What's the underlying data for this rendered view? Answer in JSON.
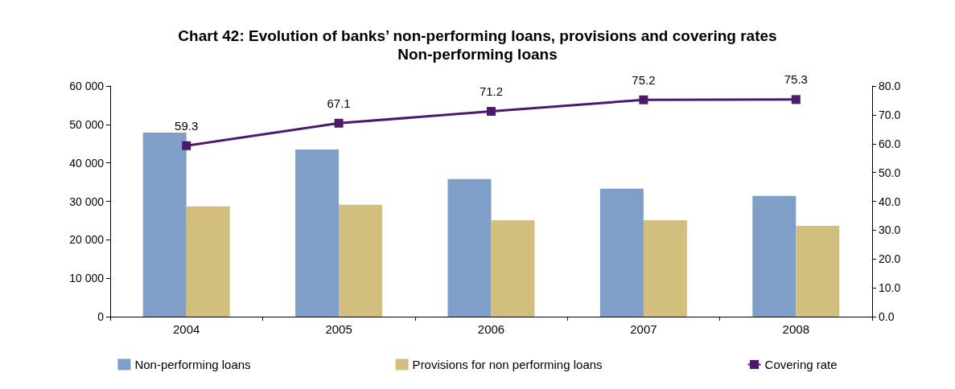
{
  "chart_data": {
    "type": "bar",
    "title": "Chart 42: Evolution of banks’ non-performing loans, provisions and covering rates",
    "subtitle": "Non-performing loans",
    "categories": [
      "2004",
      "2005",
      "2006",
      "2007",
      "2008"
    ],
    "series": [
      {
        "name": "Non-performing loans",
        "color": "#7f9fc8",
        "values": [
          47900,
          43500,
          35800,
          33300,
          31400
        ]
      },
      {
        "name": "Provisions for non performing loans",
        "color": "#d2bf7e",
        "values": [
          28700,
          29100,
          25100,
          25100,
          23600
        ]
      },
      {
        "name": "Covering rate",
        "type": "line",
        "axis": "y2",
        "color": "#4b1a6b",
        "values": [
          59.3,
          67.1,
          71.2,
          75.2,
          75.3
        ],
        "value_labels": [
          "59.3",
          "67.1",
          "71.2",
          "75.2",
          "75.3"
        ]
      }
    ],
    "ylim": [
      0,
      60000
    ],
    "yticks": [
      0,
      {
        "value": 10000,
        "label": "10 000"
      },
      {
        "value": 20000,
        "label": "20 000"
      },
      {
        "value": 30000,
        "label": "30 000"
      },
      {
        "value": 40000,
        "label": "40 000"
      },
      {
        "value": 50000,
        "label": "50 000"
      },
      {
        "value": 60000,
        "label": "60 000"
      }
    ],
    "y2lim": [
      0,
      80
    ],
    "y2ticks": [
      {
        "value": 0,
        "label": "0.0"
      },
      {
        "value": 10,
        "label": "10.0"
      },
      {
        "value": 20,
        "label": "20.0"
      },
      {
        "value": 30,
        "label": "30.0"
      },
      {
        "value": 40,
        "label": "40.0"
      },
      {
        "value": 50,
        "label": "50.0"
      },
      {
        "value": 60,
        "label": "60.0"
      },
      {
        "value": 70,
        "label": "70.0"
      },
      {
        "value": 80,
        "label": "80.0"
      }
    ],
    "grid": false,
    "legend": "bottom",
    "marker": "square",
    "line_style": "solid"
  }
}
